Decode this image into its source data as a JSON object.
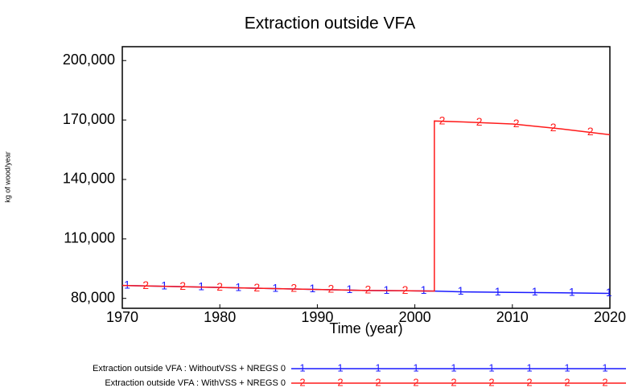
{
  "chart_data": {
    "type": "line",
    "title": "Extraction outside VFA",
    "xlabel": "Time (year)",
    "ylabel": "kg of wood/year",
    "x": [
      1970,
      1975,
      1980,
      1985,
      1990,
      1995,
      2000,
      2002,
      2002,
      2005,
      2010,
      2015,
      2020
    ],
    "series": [
      {
        "name": "Extraction outside VFA : WithoutVSS + NREGS 0",
        "marker": "1",
        "color": "#1a1aff",
        "values": [
          86500,
          86000,
          85500,
          85000,
          84500,
          84000,
          83800,
          83700,
          83700,
          83300,
          83000,
          82800,
          82500
        ]
      },
      {
        "name": "Extraction outside VFA : WithVSS + NREGS 0",
        "marker": "2",
        "color": "#ff1a1a",
        "values": [
          86500,
          86000,
          85500,
          85000,
          84500,
          84000,
          83800,
          83700,
          169500,
          169000,
          168000,
          165500,
          162600
        ]
      }
    ],
    "xlim": [
      1970,
      2020
    ],
    "xticks": [
      1970,
      1980,
      1990,
      2000,
      2010,
      2020
    ],
    "ylim": [
      75000,
      207000
    ],
    "yticks": [
      {
        "value": 80000,
        "label": "80,000"
      },
      {
        "value": 110000,
        "label": "110,000"
      },
      {
        "value": 140000,
        "label": "140,000"
      },
      {
        "value": 170000,
        "label": "170,000"
      },
      {
        "value": 200000,
        "label": "200,000"
      }
    ],
    "grid": false,
    "legend": "bottom"
  }
}
